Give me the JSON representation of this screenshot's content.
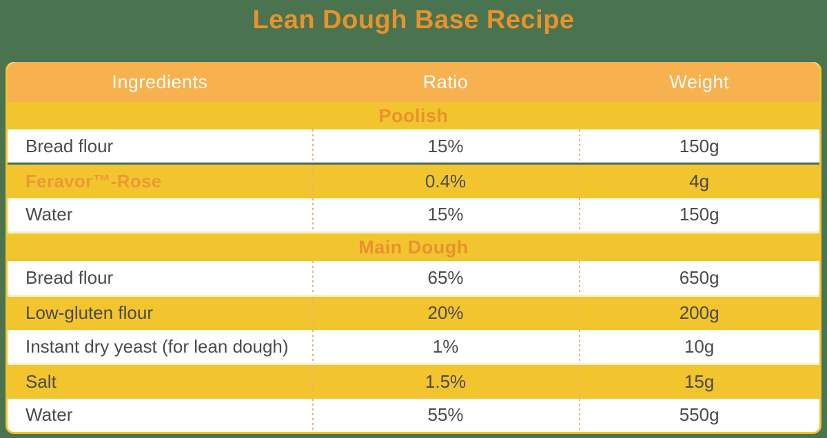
{
  "page": {
    "title": "Lean Dough Base Recipe"
  },
  "colors": {
    "page_background": "#4a7350",
    "header_background": "#f7b14f",
    "row_yellow": "#f2c52f",
    "accent_orange": "#e8922d",
    "emphasis_orange": "#eb9a33",
    "body_text": "#4b4b4b",
    "green_divider": "#3e6b55"
  },
  "table": {
    "columns": [
      "Ingredients",
      "Ratio",
      "Weight"
    ],
    "sections": [
      {
        "label": "Poolish",
        "rows": [
          {
            "ingredient": "Bread flour",
            "ratio": "15%",
            "weight": "150g"
          },
          {
            "ingredient": "Feravor™-Rose",
            "ratio": "0.4%",
            "weight": "4g",
            "emphasis": true
          },
          {
            "ingredient": "Water",
            "ratio": "15%",
            "weight": "150g"
          }
        ]
      },
      {
        "label": "Main Dough",
        "rows": [
          {
            "ingredient": "Bread flour",
            "ratio": "65%",
            "weight": "650g"
          },
          {
            "ingredient": "Low-gluten flour",
            "ratio": "20%",
            "weight": "200g"
          },
          {
            "ingredient": "Instant dry yeast (for lean dough)",
            "ratio": "1%",
            "weight": "10g"
          },
          {
            "ingredient": "Salt",
            "ratio": "1.5%",
            "weight": "15g"
          },
          {
            "ingredient": "Water",
            "ratio": "55%",
            "weight": "550g"
          }
        ]
      }
    ]
  }
}
